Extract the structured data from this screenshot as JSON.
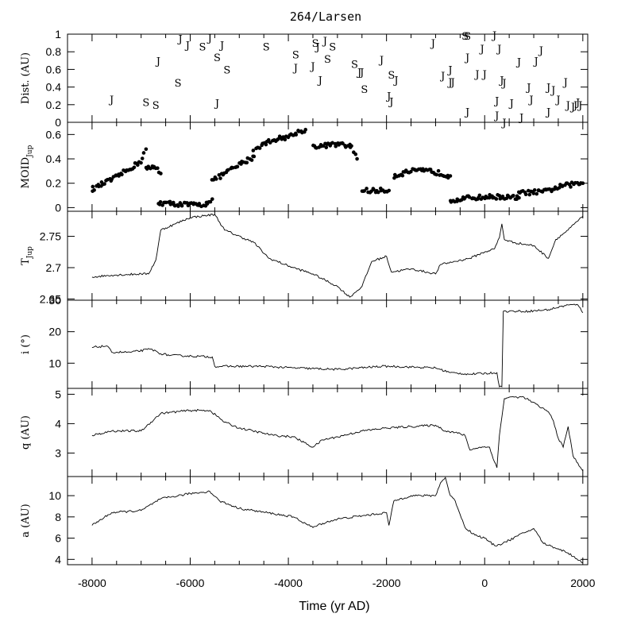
{
  "chart_data": {
    "type": "line",
    "title": "264/Larsen",
    "xlabel": "Time (yr AD)",
    "xlim": [
      -8500,
      2100
    ],
    "x_ticks": [
      -8000,
      -6000,
      -4000,
      -2000,
      0,
      2000
    ],
    "x_tick_labels": [
      "-8000",
      "-6000",
      "-4000",
      "-2000",
      "0",
      "2000"
    ],
    "panels": [
      {
        "key": "dist",
        "type": "scatter-text",
        "ylabel": "Dist. (AU)",
        "ylim": [
          0,
          1
        ],
        "y_ticks": [
          0,
          0.2,
          0.4,
          0.6,
          0.8,
          1
        ],
        "y_tick_labels": [
          "0",
          "0.2",
          "0.4",
          "0.6",
          "0.8",
          "1"
        ],
        "points": [
          {
            "x": -7600,
            "y": 0.26,
            "label": "J"
          },
          {
            "x": -6900,
            "y": 0.23,
            "label": "S"
          },
          {
            "x": -6700,
            "y": 0.2,
            "label": "S"
          },
          {
            "x": -6650,
            "y": 0.7,
            "label": "J"
          },
          {
            "x": -6250,
            "y": 0.45,
            "label": "S"
          },
          {
            "x": -6200,
            "y": 0.95,
            "label": "J"
          },
          {
            "x": -6050,
            "y": 0.88,
            "label": "J"
          },
          {
            "x": -5750,
            "y": 0.86,
            "label": "S"
          },
          {
            "x": -5600,
            "y": 0.96,
            "label": "J"
          },
          {
            "x": -5450,
            "y": 0.22,
            "label": "J"
          },
          {
            "x": -5450,
            "y": 0.74,
            "label": "S"
          },
          {
            "x": -5350,
            "y": 0.88,
            "label": "J"
          },
          {
            "x": -5250,
            "y": 0.6,
            "label": "S"
          },
          {
            "x": -4450,
            "y": 0.86,
            "label": "S"
          },
          {
            "x": -3850,
            "y": 0.77,
            "label": "S"
          },
          {
            "x": -3850,
            "y": 0.62,
            "label": "J"
          },
          {
            "x": -3500,
            "y": 0.64,
            "label": "J"
          },
          {
            "x": -3450,
            "y": 0.9,
            "label": "S"
          },
          {
            "x": -3400,
            "y": 0.86,
            "label": "J"
          },
          {
            "x": -3350,
            "y": 0.48,
            "label": "J"
          },
          {
            "x": -3250,
            "y": 0.93,
            "label": "J"
          },
          {
            "x": -3200,
            "y": 0.72,
            "label": "S"
          },
          {
            "x": -3100,
            "y": 0.86,
            "label": "S"
          },
          {
            "x": -2650,
            "y": 0.66,
            "label": "S"
          },
          {
            "x": -2550,
            "y": 0.57,
            "label": "J"
          },
          {
            "x": -2500,
            "y": 0.57,
            "label": "J"
          },
          {
            "x": -2450,
            "y": 0.38,
            "label": "S"
          },
          {
            "x": -2100,
            "y": 0.71,
            "label": "J"
          },
          {
            "x": -1950,
            "y": 0.3,
            "label": "J"
          },
          {
            "x": -1900,
            "y": 0.24,
            "label": "J"
          },
          {
            "x": -1900,
            "y": 0.54,
            "label": "S"
          },
          {
            "x": -1800,
            "y": 0.48,
            "label": "J"
          },
          {
            "x": -1050,
            "y": 0.9,
            "label": "J"
          },
          {
            "x": -850,
            "y": 0.53,
            "label": "J"
          },
          {
            "x": -700,
            "y": 0.6,
            "label": "J"
          },
          {
            "x": -700,
            "y": 0.46,
            "label": "J"
          },
          {
            "x": -650,
            "y": 0.46,
            "label": "J"
          },
          {
            "x": -400,
            "y": 0.98,
            "label": "S"
          },
          {
            "x": -350,
            "y": 0.98,
            "label": "S"
          },
          {
            "x": -350,
            "y": 0.74,
            "label": "J"
          },
          {
            "x": -350,
            "y": 0.12,
            "label": "J"
          },
          {
            "x": -150,
            "y": 0.55,
            "label": "J"
          },
          {
            "x": -50,
            "y": 0.84,
            "label": "J"
          },
          {
            "x": 0,
            "y": 0.55,
            "label": "J"
          },
          {
            "x": 200,
            "y": 0.99,
            "label": "J"
          },
          {
            "x": 250,
            "y": 0.25,
            "label": "J"
          },
          {
            "x": 250,
            "y": 0.08,
            "label": "J"
          },
          {
            "x": 300,
            "y": 0.84,
            "label": "J"
          },
          {
            "x": 350,
            "y": 0.48,
            "label": "J"
          },
          {
            "x": 400,
            "y": 0.45,
            "label": "J"
          },
          {
            "x": 400,
            "y": 0.0,
            "label": "J"
          },
          {
            "x": 550,
            "y": 0.22,
            "label": "J"
          },
          {
            "x": 700,
            "y": 0.69,
            "label": "J"
          },
          {
            "x": 750,
            "y": 0.06,
            "label": "J"
          },
          {
            "x": 900,
            "y": 0.4,
            "label": "J"
          },
          {
            "x": 950,
            "y": 0.26,
            "label": "J"
          },
          {
            "x": 1050,
            "y": 0.7,
            "label": "J"
          },
          {
            "x": 1150,
            "y": 0.82,
            "label": "J"
          },
          {
            "x": 1300,
            "y": 0.4,
            "label": "J"
          },
          {
            "x": 1300,
            "y": 0.12,
            "label": "J"
          },
          {
            "x": 1400,
            "y": 0.37,
            "label": "J"
          },
          {
            "x": 1500,
            "y": 0.26,
            "label": "J"
          },
          {
            "x": 1650,
            "y": 0.46,
            "label": "J"
          },
          {
            "x": 1700,
            "y": 0.2,
            "label": "J"
          },
          {
            "x": 1800,
            "y": 0.18,
            "label": "J"
          },
          {
            "x": 1850,
            "y": 0.2,
            "label": "J"
          },
          {
            "x": 1900,
            "y": 0.23,
            "label": "J"
          },
          {
            "x": 1950,
            "y": 0.2,
            "label": "J"
          }
        ]
      },
      {
        "key": "moid",
        "type": "scatter",
        "ylabel": "MOID",
        "ylabel_sub": "Jup",
        "ylim": [
          -0.03,
          0.7
        ],
        "y_ticks": [
          0,
          0.2,
          0.4,
          0.6
        ],
        "y_tick_labels": [
          "0",
          "0.2",
          "0.4",
          "0.6"
        ],
        "segments": [
          {
            "x": [
              -8000,
              -7500,
              -7000,
              -6900
            ],
            "y": [
              0.15,
              0.25,
              0.38,
              0.48
            ]
          },
          {
            "x": [
              -6900,
              -6700,
              -6600
            ],
            "y": [
              0.32,
              0.33,
              0.28
            ]
          },
          {
            "x": [
              -6650,
              -6300,
              -5800,
              -5700,
              -5550
            ],
            "y": [
              0.04,
              0.03,
              0.02,
              0.03,
              0.07
            ]
          },
          {
            "x": [
              -5550,
              -5300,
              -5000,
              -4700
            ],
            "y": [
              0.22,
              0.28,
              0.35,
              0.42
            ]
          },
          {
            "x": [
              -4700,
              -4300,
              -4000,
              -3800,
              -3650
            ],
            "y": [
              0.48,
              0.56,
              0.58,
              0.62,
              0.64
            ]
          },
          {
            "x": [
              -3500,
              -3000,
              -2700,
              -2600
            ],
            "y": [
              0.5,
              0.52,
              0.5,
              0.4
            ]
          },
          {
            "x": [
              -2500,
              -2100,
              -1950
            ],
            "y": [
              0.14,
              0.14,
              0.14
            ]
          },
          {
            "x": [
              -1850,
              -1500,
              -1100,
              -700
            ],
            "y": [
              0.26,
              0.3,
              0.3,
              0.26
            ]
          },
          {
            "x": [
              -700,
              -300,
              200,
              700
            ],
            "y": [
              0.06,
              0.08,
              0.09,
              0.08
            ]
          },
          {
            "x": [
              700,
              1200,
              1600,
              2000
            ],
            "y": [
              0.12,
              0.13,
              0.18,
              0.2
            ]
          }
        ]
      },
      {
        "key": "tjup",
        "type": "line",
        "ylabel": "T",
        "ylabel_sub": "Jup",
        "ylim": [
          2.648,
          2.79
        ],
        "y_ticks": [
          2.65,
          2.7,
          2.75
        ],
        "y_tick_labels": [
          "2.65",
          "2.7",
          "2.75"
        ],
        "x": [
          -8000,
          -7600,
          -7000,
          -6850,
          -6700,
          -6600,
          -6300,
          -6000,
          -5500,
          -5300,
          -4700,
          -4400,
          -3900,
          -3500,
          -3000,
          -2750,
          -2500,
          -2300,
          -2000,
          -1900,
          -1500,
          -1000,
          -900,
          -600,
          -300,
          0,
          200,
          300,
          350,
          400,
          600,
          1000,
          1300,
          1450,
          1700,
          2000
        ],
        "y": [
          2.685,
          2.688,
          2.69,
          2.69,
          2.712,
          2.76,
          2.77,
          2.78,
          2.785,
          2.76,
          2.74,
          2.715,
          2.7,
          2.69,
          2.67,
          2.653,
          2.67,
          2.71,
          2.718,
          2.693,
          2.698,
          2.69,
          2.705,
          2.71,
          2.715,
          2.725,
          2.73,
          2.748,
          2.77,
          2.745,
          2.74,
          2.735,
          2.715,
          2.745,
          2.76,
          2.782
        ]
      },
      {
        "key": "incl",
        "type": "line",
        "ylabel": "i (°)",
        "ylim": [
          2,
          30
        ],
        "y_ticks": [
          10,
          20,
          30
        ],
        "y_tick_labels": [
          "10",
          "20",
          "30"
        ],
        "x": [
          -8000,
          -7700,
          -7600,
          -7200,
          -6800,
          -6600,
          -6400,
          -5550,
          -5500,
          -4500,
          -3900,
          -3000,
          -2100,
          -1900,
          -1000,
          -700,
          -300,
          250,
          300,
          350,
          380,
          900,
          1300,
          1700,
          1900,
          1950,
          2000
        ],
        "y": [
          15.0,
          15.5,
          13.5,
          13.5,
          14.5,
          13.0,
          12.5,
          12.0,
          9.0,
          9.0,
          8.5,
          8.0,
          9.0,
          9.0,
          8.5,
          7.0,
          6.5,
          7.0,
          2.5,
          2.5,
          26.5,
          26.5,
          27.0,
          28.5,
          28.5,
          27.5,
          26.0
        ]
      },
      {
        "key": "q",
        "type": "line",
        "ylabel": "q (AU)",
        "ylim": [
          2.2,
          5.2
        ],
        "y_ticks": [
          3,
          4,
          5
        ],
        "y_tick_labels": [
          "3",
          "4",
          "5"
        ],
        "x": [
          -8000,
          -7600,
          -7000,
          -6600,
          -6000,
          -5600,
          -5300,
          -5000,
          -4300,
          -3900,
          -3500,
          -3300,
          -3000,
          -2500,
          -2000,
          -1000,
          -800,
          -600,
          -400,
          -300,
          -100,
          100,
          200,
          250,
          300,
          400,
          500,
          800,
          1100,
          1300,
          1400,
          1500,
          1600,
          1700,
          1800,
          2000
        ],
        "y": [
          3.6,
          3.75,
          3.75,
          4.35,
          4.45,
          4.45,
          4.05,
          3.85,
          3.6,
          3.55,
          3.2,
          3.45,
          3.55,
          3.75,
          3.85,
          3.95,
          3.75,
          3.7,
          3.6,
          3.1,
          3.2,
          3.2,
          2.7,
          2.5,
          3.6,
          4.85,
          4.9,
          4.9,
          4.6,
          4.4,
          4.1,
          3.5,
          3.2,
          3.9,
          2.9,
          2.4
        ]
      },
      {
        "key": "a",
        "type": "line",
        "ylabel": "a (AU)",
        "ylim": [
          3.5,
          11.8
        ],
        "y_ticks": [
          4,
          6,
          8,
          10
        ],
        "y_tick_labels": [
          "4",
          "6",
          "8",
          "10"
        ],
        "x": [
          -8000,
          -7600,
          -7000,
          -6600,
          -6000,
          -5600,
          -5400,
          -5000,
          -4300,
          -3900,
          -3500,
          -3300,
          -3000,
          -2500,
          -2000,
          -1950,
          -1850,
          -1500,
          -1000,
          -900,
          -800,
          -700,
          -600,
          -400,
          -200,
          0,
          200,
          300,
          500,
          800,
          1000,
          1200,
          1500,
          1700,
          2000
        ],
        "y": [
          7.2,
          8.4,
          8.6,
          9.7,
          10.2,
          10.4,
          9.5,
          8.8,
          8.3,
          8.0,
          7.0,
          7.4,
          7.8,
          8.1,
          8.4,
          7.2,
          9.5,
          10.0,
          10.0,
          11.2,
          11.7,
          10.0,
          9.5,
          7.0,
          6.3,
          6.0,
          5.3,
          5.4,
          5.8,
          6.5,
          6.9,
          5.5,
          5.0,
          4.6,
          3.7
        ]
      }
    ]
  }
}
